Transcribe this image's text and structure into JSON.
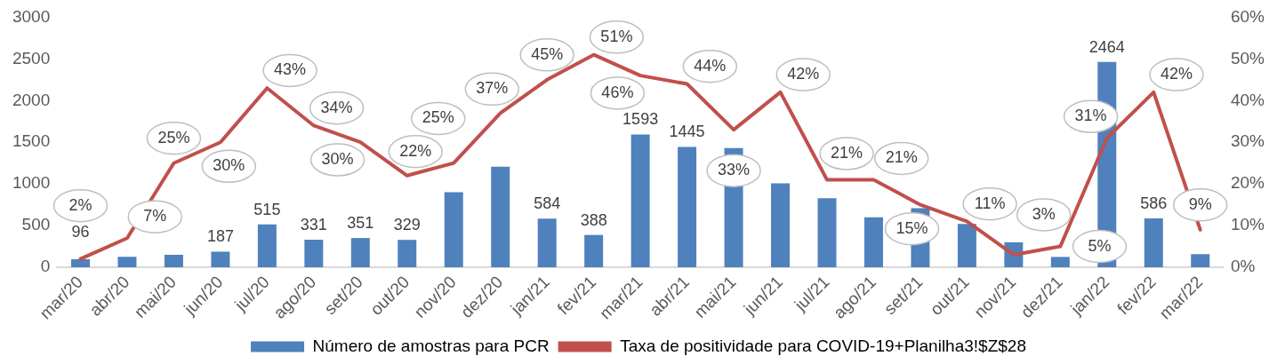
{
  "chart_data": {
    "type": "bar",
    "categories": [
      "mar/20",
      "abr/20",
      "mai/20",
      "jun/20",
      "jul/20",
      "ago/20",
      "set/20",
      "out/20",
      "nov/20",
      "dez/20",
      "jan/21",
      "fev/21",
      "mar/21",
      "abr/21",
      "mai/21",
      "jun/21",
      "jul/21",
      "ago/21",
      "set/21",
      "out/21",
      "nov/21",
      "dez/21",
      "jan/22",
      "fev/22",
      "mar/22"
    ],
    "series": [
      {
        "name": "Número de amostras para PCR",
        "type": "bar",
        "color": "#4f81bd",
        "values": [
          96,
          125,
          150,
          187,
          515,
          331,
          351,
          329,
          900,
          1207,
          584,
          388,
          1593,
          1445,
          1430,
          1008,
          830,
          600,
          710,
          520,
          300,
          124,
          2464,
          586,
          159
        ],
        "value_labels": [
          "96",
          null,
          null,
          "187",
          "515",
          "331",
          "351",
          "329",
          null,
          null,
          "584",
          "388",
          "1593",
          "1445",
          null,
          null,
          null,
          null,
          null,
          null,
          null,
          null,
          "2464",
          "586",
          null
        ]
      },
      {
        "name": "Taxa de positividade para COVID-19+Planilha3!$Z$28",
        "type": "line",
        "axis": "y2",
        "color": "#c0504d",
        "values": [
          2,
          7,
          25,
          30,
          43,
          34,
          30,
          22,
          25,
          37,
          45,
          51,
          46,
          44,
          33,
          42,
          21,
          21,
          15,
          11,
          3,
          5,
          31,
          42,
          9
        ],
        "value_labels": [
          "2%",
          "7%",
          "25%",
          "30%",
          "43%",
          "34%",
          "30%",
          "22%",
          "25%",
          "37%",
          "45%",
          "51%",
          "46%",
          "44%",
          "33%",
          "42%",
          "21%",
          "21%",
          "15%",
          "11%",
          "3%",
          "5%",
          "31%",
          "42%",
          "9%"
        ]
      }
    ],
    "ylim": [
      0,
      3000
    ],
    "yticks": [
      0,
      500,
      1000,
      1500,
      2000,
      2500,
      3000
    ],
    "y2lim": [
      0,
      60
    ],
    "y2ticks": [
      {
        "value": 0,
        "label": "0%"
      },
      {
        "value": 10,
        "label": "10%"
      },
      {
        "value": 20,
        "label": "20%"
      },
      {
        "value": 30,
        "label": "30%"
      },
      {
        "value": 40,
        "label": "40%"
      },
      {
        "value": 50,
        "label": "50%"
      },
      {
        "value": 60,
        "label": "60%"
      }
    ],
    "grid": false,
    "legend": "bottom",
    "marker": "none",
    "line_style": "solid"
  }
}
